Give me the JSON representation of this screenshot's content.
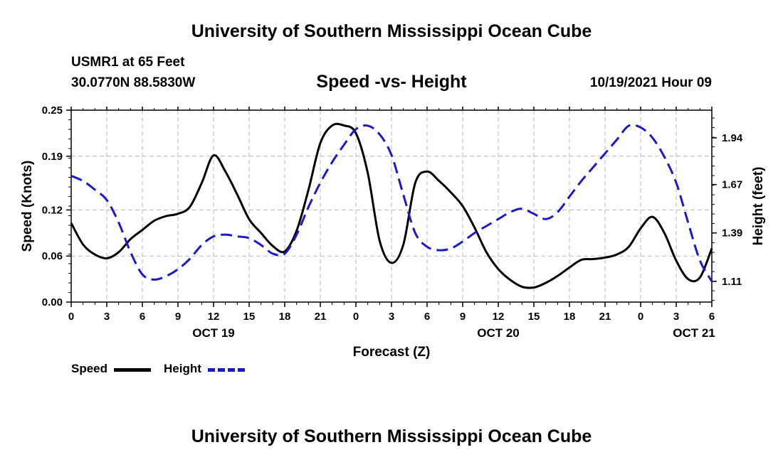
{
  "page": {
    "title_top": "University of Southern Mississippi Ocean Cube",
    "title_bottom": "University of Southern Mississippi Ocean Cube",
    "station": "USMR1 at 65 Feet",
    "coords": "30.0770N  88.5830W",
    "subtitle": "Speed -vs- Height",
    "datehour": "10/19/2021 Hour 09"
  },
  "legend": {
    "speed": "Speed",
    "height": "Height"
  },
  "colors": {
    "speed": "#000000",
    "height": "#1a1acc",
    "grid": "#b8b8b8"
  },
  "chart_data": {
    "type": "line",
    "title": "Speed -vs- Height",
    "xlabel": "Forecast (Z)",
    "ylabel": "Speed (Knots)",
    "y2label": "Height (feet)",
    "x_ticks": [
      "0",
      "3",
      "6",
      "9",
      "12",
      "15",
      "18",
      "21",
      "0",
      "3",
      "6",
      "9",
      "12",
      "15",
      "18",
      "21",
      "0",
      "3",
      "6"
    ],
    "day_labels": [
      {
        "label": "OCT 19",
        "hour": 12
      },
      {
        "label": "OCT 20",
        "hour": 36
      },
      {
        "label": "OCT 21",
        "hour": 52.5
      }
    ],
    "ylim": [
      0,
      0.25
    ],
    "y_ticks": [
      "0.00",
      "0.06",
      "0.12",
      "0.19",
      "0.25"
    ],
    "y2lim": [
      0.99,
      2.1
    ],
    "y2_ticks": [
      "1.11",
      "1.39",
      "1.67",
      "1.94"
    ],
    "x": [
      0,
      1,
      2,
      3,
      4,
      5,
      6,
      7,
      8,
      9,
      10,
      11,
      12,
      13,
      14,
      15,
      16,
      17,
      18,
      19,
      20,
      21,
      22,
      23,
      24,
      25,
      26,
      27,
      28,
      29,
      30,
      31,
      32,
      33,
      34,
      35,
      36,
      37,
      38,
      39,
      40,
      41,
      42,
      43,
      44,
      45,
      46,
      47,
      48,
      49,
      50,
      51,
      52,
      53,
      54
    ],
    "series": [
      {
        "name": "Speed",
        "axis": "left",
        "values": [
          0.103,
          0.075,
          0.062,
          0.057,
          0.065,
          0.082,
          0.094,
          0.106,
          0.112,
          0.115,
          0.124,
          0.155,
          0.191,
          0.17,
          0.14,
          0.108,
          0.09,
          0.073,
          0.066,
          0.093,
          0.146,
          0.207,
          0.23,
          0.23,
          0.22,
          0.168,
          0.08,
          0.051,
          0.075,
          0.155,
          0.17,
          0.158,
          0.143,
          0.125,
          0.097,
          0.065,
          0.043,
          0.029,
          0.02,
          0.019,
          0.025,
          0.034,
          0.045,
          0.055,
          0.056,
          0.058,
          0.062,
          0.072,
          0.096,
          0.111,
          0.09,
          0.054,
          0.03,
          0.032,
          0.07
        ]
      },
      {
        "name": "Height",
        "axis": "right",
        "values": [
          1.72,
          1.69,
          1.64,
          1.58,
          1.45,
          1.28,
          1.15,
          1.12,
          1.14,
          1.18,
          1.24,
          1.32,
          1.37,
          1.38,
          1.37,
          1.36,
          1.32,
          1.27,
          1.27,
          1.38,
          1.54,
          1.68,
          1.8,
          1.9,
          1.99,
          2.01,
          1.96,
          1.84,
          1.61,
          1.39,
          1.31,
          1.29,
          1.3,
          1.34,
          1.39,
          1.43,
          1.47,
          1.51,
          1.53,
          1.5,
          1.47,
          1.51,
          1.6,
          1.69,
          1.77,
          1.85,
          1.93,
          2.01,
          2.0,
          1.94,
          1.83,
          1.68,
          1.45,
          1.23,
          1.11
        ]
      }
    ]
  }
}
